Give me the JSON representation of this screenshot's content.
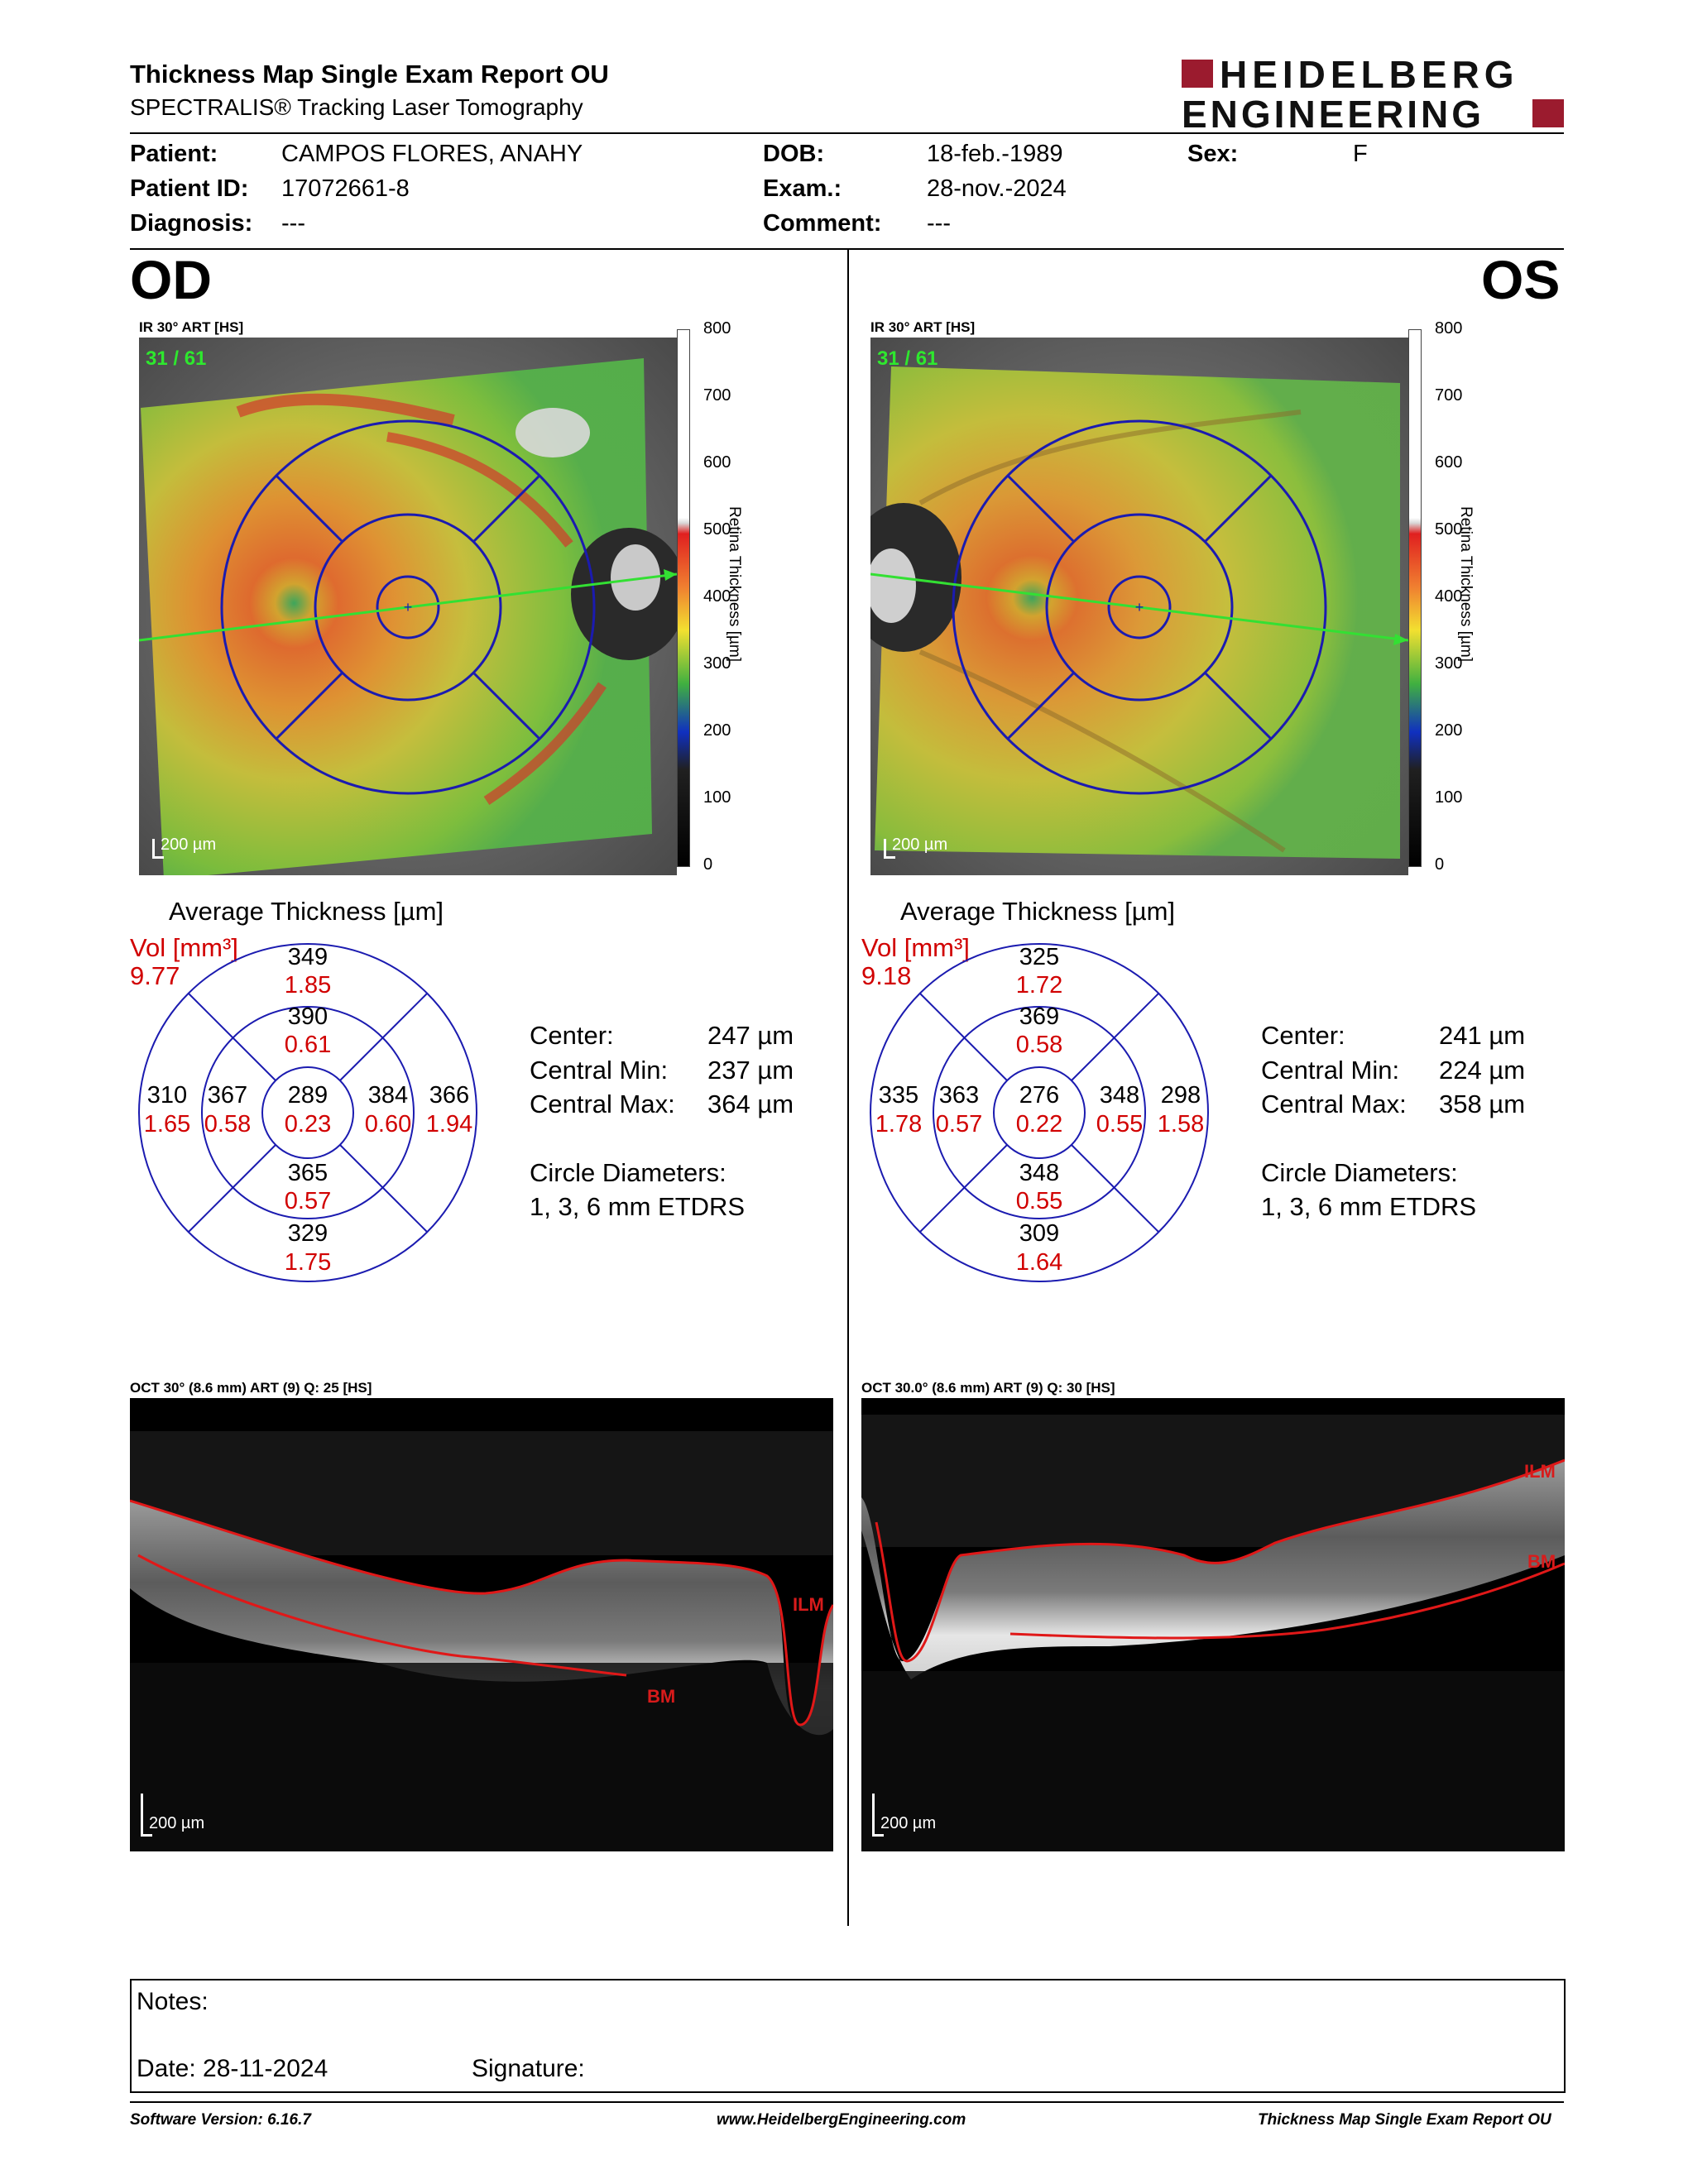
{
  "header": {
    "title": "Thickness Map Single Exam Report OU",
    "subtitle": "SPECTRALIS® Tracking Laser Tomography",
    "logo_line1": "HEIDELBERG",
    "logo_line2": "ENGINEERING",
    "brand_color": "#9b1b2e"
  },
  "patient": {
    "patient_label": "Patient:",
    "patient_value": "CAMPOS FLORES, ANAHY",
    "id_label": "Patient ID:",
    "id_value": "17072661-8",
    "diagnosis_label": "Diagnosis:",
    "diagnosis_value": "---",
    "dob_label": "DOB:",
    "dob_value": "18-feb.-1989",
    "exam_label": "Exam.:",
    "exam_value": "28-nov.-2024",
    "comment_label": "Comment:",
    "comment_value": "---",
    "sex_label": "Sex:",
    "sex_value": "F"
  },
  "colorbar": {
    "ticks": [
      "800",
      "700",
      "600",
      "500",
      "400",
      "300",
      "200",
      "100",
      "0"
    ],
    "label": "Retina Thickness [µm]"
  },
  "od": {
    "eye": "OD",
    "ir_label": "IR 30° ART [HS]",
    "frame": "31 / 61",
    "scale": "200 µm",
    "avg_title": "Average Thickness [µm]",
    "vol_label": "Vol [mm³]",
    "vol_value": "9.77",
    "etdrs": {
      "center": [
        "289",
        "0.23"
      ],
      "inner_sup": [
        "390",
        "0.61"
      ],
      "inner_inf": [
        "365",
        "0.57"
      ],
      "inner_temp": [
        "367",
        "0.58"
      ],
      "inner_nasal": [
        "384",
        "0.60"
      ],
      "outer_sup": [
        "349",
        "1.85"
      ],
      "outer_inf": [
        "329",
        "1.75"
      ],
      "outer_temp": [
        "310",
        "1.65"
      ],
      "outer_nasal": [
        "366",
        "1.94"
      ]
    },
    "center_label": "Center:",
    "center_value": "247 µm",
    "cmin_label": "Central Min:",
    "cmin_value": "237 µm",
    "cmax_label": "Central Max:",
    "cmax_value": "364 µm",
    "diam_label": "Circle Diameters:",
    "diam_value": "1, 3, 6 mm ETDRS",
    "oct_label": "OCT 30° (8.6 mm) ART (9) Q: 25 [HS]",
    "ilm": "ILM",
    "bm": "BM",
    "oct_scale": "200 µm"
  },
  "os": {
    "eye": "OS",
    "ir_label": "IR 30° ART [HS]",
    "frame": "31 / 61",
    "scale": "200 µm",
    "avg_title": "Average Thickness [µm]",
    "vol_label": "Vol [mm³]",
    "vol_value": "9.18",
    "etdrs": {
      "center": [
        "276",
        "0.22"
      ],
      "inner_sup": [
        "369",
        "0.58"
      ],
      "inner_inf": [
        "348",
        "0.55"
      ],
      "inner_temp": [
        "363",
        "0.57"
      ],
      "inner_nasal": [
        "348",
        "0.55"
      ],
      "outer_sup": [
        "325",
        "1.72"
      ],
      "outer_inf": [
        "309",
        "1.64"
      ],
      "outer_temp": [
        "335",
        "1.78"
      ],
      "outer_nasal": [
        "298",
        "1.58"
      ]
    },
    "center_label": "Center:",
    "center_value": "241 µm",
    "cmin_label": "Central Min:",
    "cmin_value": "224 µm",
    "cmax_label": "Central Max:",
    "cmax_value": "358 µm",
    "diam_label": "Circle Diameters:",
    "diam_value": "1, 3, 6 mm ETDRS",
    "oct_label": "OCT 30.0° (8.6 mm) ART (9) Q: 30 [HS]",
    "ilm": "ILM",
    "bm": "BM",
    "oct_scale": "200 µm"
  },
  "notes": {
    "notes_label": "Notes:",
    "date_label": "Date: 28-11-2024",
    "signature_label": "Signature:"
  },
  "footer": {
    "software": "Software Version: 6.16.7",
    "website": "www.HeidelbergEngineering.com",
    "report": "Thickness Map Single Exam Report OU"
  }
}
